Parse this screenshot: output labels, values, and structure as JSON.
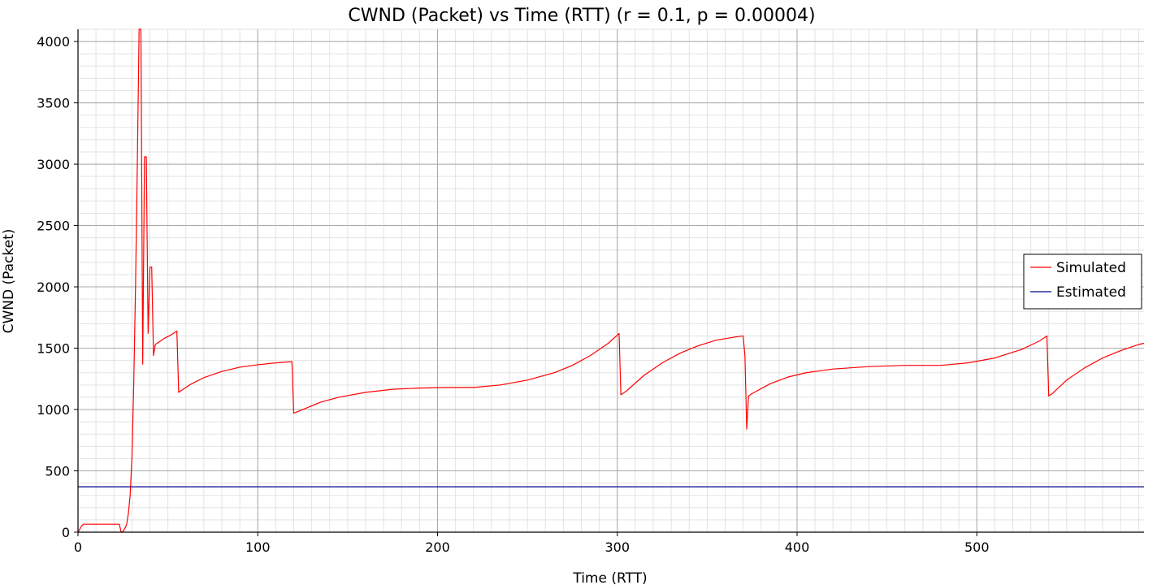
{
  "chart_data": {
    "type": "line",
    "title": "CWND (Packet) vs Time (RTT) (r = 0.1, p = 0.00004)",
    "xlabel": "Time (RTT)",
    "ylabel": "CWND (Packet)",
    "xlim": [
      0,
      593
    ],
    "ylim": [
      0,
      4100
    ],
    "x_ticks": [
      0,
      100,
      200,
      300,
      400,
      500
    ],
    "y_ticks": [
      0,
      500,
      1000,
      1500,
      2000,
      2500,
      3000,
      3500,
      4000
    ],
    "x_minor_step": 10,
    "y_minor_step": 100,
    "grid": true,
    "legend": {
      "position": "right"
    },
    "series": [
      {
        "name": "Simulated",
        "color": "#ff0000",
        "points": [
          [
            0,
            0
          ],
          [
            2,
            50
          ],
          [
            3,
            65
          ],
          [
            23,
            65
          ],
          [
            24,
            0
          ],
          [
            25,
            5
          ],
          [
            26,
            30
          ],
          [
            27,
            60
          ],
          [
            28,
            150
          ],
          [
            29,
            300
          ],
          [
            30,
            600
          ],
          [
            31,
            1200
          ],
          [
            32,
            2000
          ],
          [
            33,
            3000
          ],
          [
            34,
            4100
          ],
          [
            35,
            4100
          ],
          [
            36,
            1370
          ],
          [
            37,
            3060
          ],
          [
            38,
            3060
          ],
          [
            39,
            1620
          ],
          [
            40,
            2160
          ],
          [
            41,
            2160
          ],
          [
            42,
            1440
          ],
          [
            43,
            1530
          ],
          [
            45,
            1550
          ],
          [
            48,
            1580
          ],
          [
            52,
            1610
          ],
          [
            55,
            1640
          ],
          [
            56,
            1140
          ],
          [
            58,
            1160
          ],
          [
            62,
            1200
          ],
          [
            70,
            1260
          ],
          [
            80,
            1310
          ],
          [
            90,
            1345
          ],
          [
            100,
            1365
          ],
          [
            110,
            1380
          ],
          [
            119,
            1390
          ],
          [
            120,
            970
          ],
          [
            125,
            1000
          ],
          [
            135,
            1060
          ],
          [
            145,
            1100
          ],
          [
            160,
            1140
          ],
          [
            175,
            1165
          ],
          [
            190,
            1175
          ],
          [
            205,
            1180
          ],
          [
            220,
            1180
          ],
          [
            235,
            1200
          ],
          [
            250,
            1240
          ],
          [
            265,
            1300
          ],
          [
            275,
            1360
          ],
          [
            285,
            1440
          ],
          [
            295,
            1540
          ],
          [
            301,
            1620
          ],
          [
            302,
            1120
          ],
          [
            305,
            1150
          ],
          [
            315,
            1280
          ],
          [
            325,
            1380
          ],
          [
            335,
            1460
          ],
          [
            345,
            1520
          ],
          [
            355,
            1565
          ],
          [
            365,
            1590
          ],
          [
            370,
            1600
          ],
          [
            371,
            1440
          ],
          [
            372,
            840
          ],
          [
            373,
            1110
          ],
          [
            375,
            1130
          ],
          [
            385,
            1210
          ],
          [
            395,
            1265
          ],
          [
            405,
            1300
          ],
          [
            420,
            1330
          ],
          [
            440,
            1350
          ],
          [
            460,
            1360
          ],
          [
            480,
            1360
          ],
          [
            495,
            1380
          ],
          [
            510,
            1420
          ],
          [
            525,
            1490
          ],
          [
            535,
            1560
          ],
          [
            539,
            1600
          ],
          [
            540,
            1110
          ],
          [
            542,
            1130
          ],
          [
            550,
            1240
          ],
          [
            560,
            1340
          ],
          [
            570,
            1420
          ],
          [
            580,
            1480
          ],
          [
            590,
            1530
          ],
          [
            593,
            1540
          ]
        ]
      },
      {
        "name": "Estimated",
        "color": "#00008b",
        "points": [
          [
            0,
            370
          ],
          [
            593,
            370
          ]
        ]
      }
    ]
  }
}
